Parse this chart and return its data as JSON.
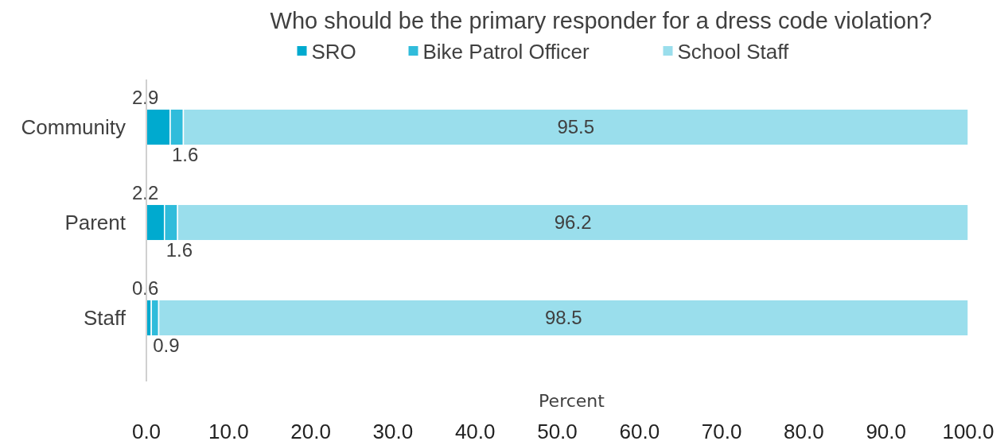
{
  "chart_data": {
    "type": "bar",
    "orientation": "horizontal",
    "stacked": true,
    "title": "Who should be the primary responder for a dress code violation?",
    "xlabel": "Percent",
    "categories": [
      "Community",
      "Parent",
      "Staff"
    ],
    "series": [
      {
        "name": "SRO",
        "color": "#00aacf",
        "values": [
          2.9,
          2.2,
          0.6
        ]
      },
      {
        "name": "Bike Patrol Officer",
        "color": "#30bcdb",
        "values": [
          1.6,
          1.6,
          0.9
        ]
      },
      {
        "name": "School Staff",
        "color": "#9adeec",
        "values": [
          95.5,
          96.2,
          98.5
        ]
      }
    ],
    "xlim": [
      0,
      100
    ],
    "xticks": [
      {
        "value": 0,
        "label": "0.0"
      },
      {
        "value": 10,
        "label": "10.0"
      },
      {
        "value": 20,
        "label": "20.0"
      },
      {
        "value": 30,
        "label": "30.0"
      },
      {
        "value": 40,
        "label": "40.0"
      },
      {
        "value": 50,
        "label": "50.0"
      },
      {
        "value": 60,
        "label": "60.0"
      },
      {
        "value": 70,
        "label": "70.0"
      },
      {
        "value": 80,
        "label": "80.0"
      },
      {
        "value": 90,
        "label": "90.0"
      },
      {
        "value": 100,
        "label": "100.0"
      }
    ],
    "data_labels": true,
    "legend": "top",
    "grid": false
  }
}
